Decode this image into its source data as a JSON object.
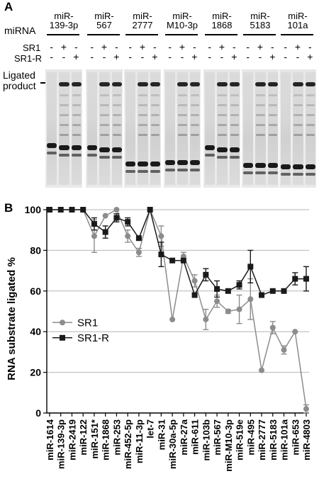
{
  "panel_a": {
    "letter": "A",
    "mirna_label": "miRNA",
    "sr1_label": "SR1",
    "sr1r_label": "SR1-R",
    "ligated_label_line1": "Ligated",
    "ligated_label_line2": "product",
    "plus": "+",
    "minus": "-",
    "groups": [
      {
        "line1": "miR-",
        "line2": "139-3p"
      },
      {
        "line1": "miR-",
        "line2": "567"
      },
      {
        "line1": "miR-",
        "line2": "2777"
      },
      {
        "line1": "miR-",
        "line2": "M10-3p"
      },
      {
        "line1": "miR-",
        "line2": "1868"
      },
      {
        "line1": "miR-",
        "line2": "5183"
      },
      {
        "line1": "miR-",
        "line2": "101a"
      }
    ]
  },
  "panel_b": {
    "letter": "B"
  },
  "chart_data": {
    "type": "line",
    "ylabel": "RNA substrate ligated %",
    "xlabel": "",
    "ylim": [
      0,
      100
    ],
    "yticks": [
      0,
      20,
      40,
      60,
      80,
      100
    ],
    "grid": true,
    "legend_position": "middle-left",
    "categories": [
      "miR-1614",
      "miR-139-3p",
      "miR-2419",
      "miR-122",
      "miR-151*",
      "miR-1868",
      "miR-253",
      "miR-452-5p",
      "miR-11-3p",
      "let-7",
      "miR-31",
      "miR-30a-5p",
      "miR-27a",
      "miR-611",
      "miR-103b",
      "miR-567",
      "miR-M10-3p",
      "miR-519e",
      "miR-495",
      "miR-2777",
      "miR-5183",
      "miR-101a",
      "miR-653",
      "miR-4803"
    ],
    "series": [
      {
        "name": "SR1",
        "color": "#8c8c8c",
        "marker": "circle",
        "values": [
          100,
          100,
          100,
          100,
          87,
          97,
          100,
          87,
          79,
          100,
          87,
          46,
          77,
          65,
          46,
          55,
          50,
          51,
          56,
          21,
          42,
          31,
          40,
          2
        ],
        "errors": [
          0,
          0,
          0,
          0,
          8,
          0,
          0,
          3,
          2,
          0,
          5,
          0,
          2,
          3,
          5,
          3,
          1,
          7,
          10,
          0,
          3,
          2,
          0,
          2
        ]
      },
      {
        "name": "SR1-R",
        "color": "#1a1a1a",
        "marker": "square",
        "values": [
          100,
          100,
          100,
          100,
          93,
          89,
          96,
          94,
          86,
          100,
          78,
          75,
          75,
          58,
          68,
          61,
          60,
          63,
          72,
          58,
          60,
          60,
          66,
          66
        ],
        "errors": [
          0,
          0,
          0,
          0,
          3,
          3,
          2,
          2,
          0,
          0,
          6,
          0,
          0,
          0,
          3,
          4,
          0,
          2,
          8,
          0,
          0,
          0,
          3,
          6
        ]
      }
    ]
  }
}
